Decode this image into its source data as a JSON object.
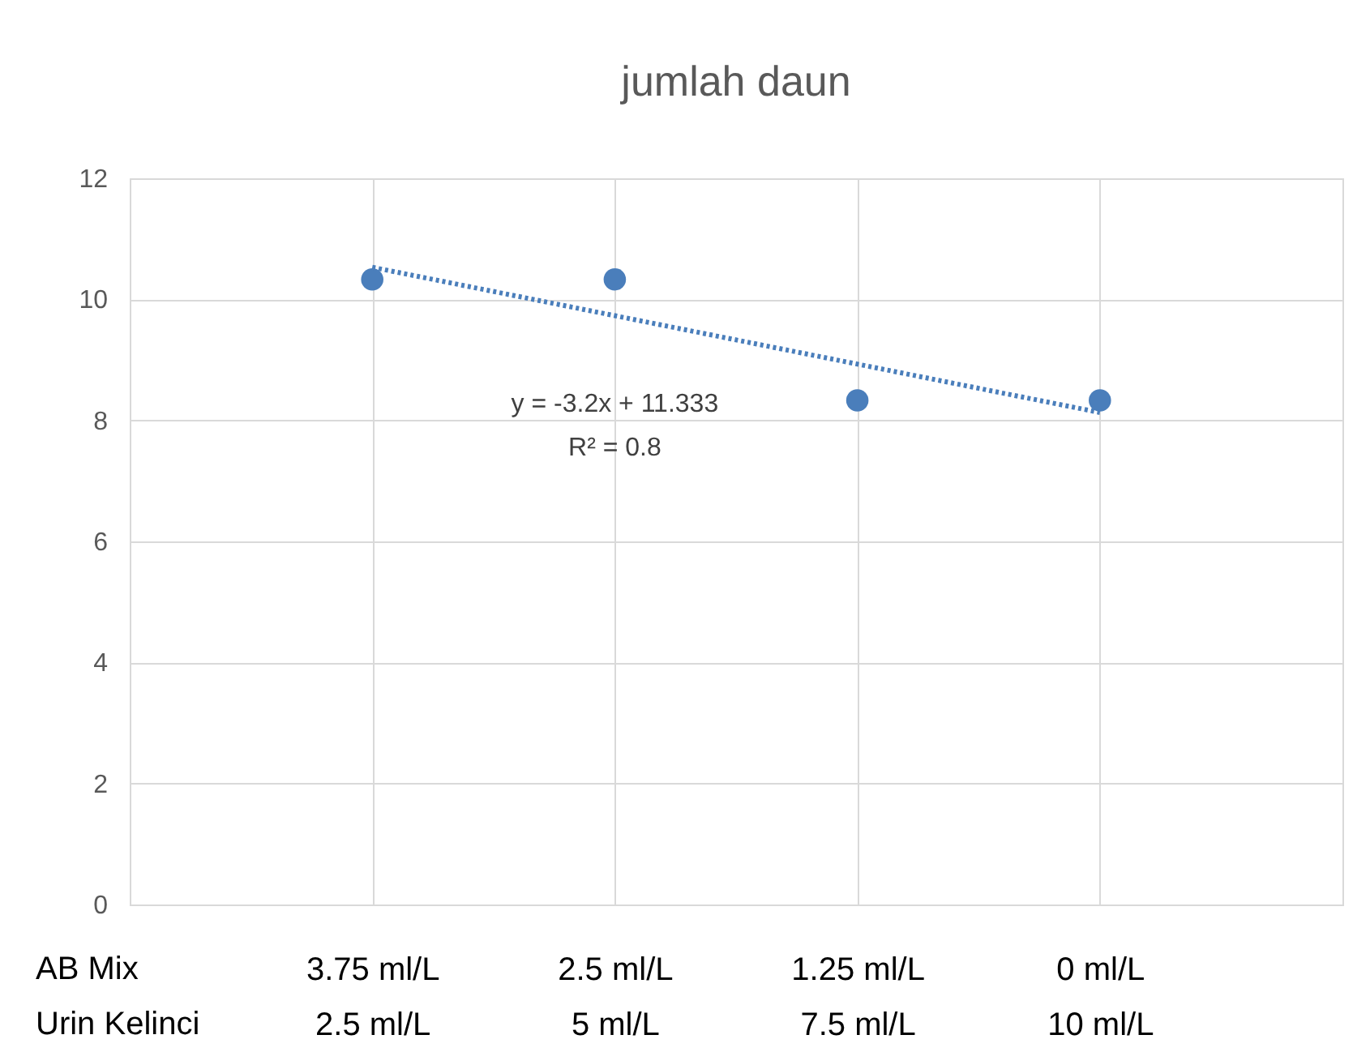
{
  "chart_data": {
    "type": "scatter",
    "title": "jumlah daun",
    "categories": [
      "3.75 ml/L\n2.5 ml/L",
      "2.5 ml/L\n5 ml/L",
      "1.25 ml/L\n7.5 ml/L",
      "0 ml/L\n10 ml/L"
    ],
    "series": [
      {
        "type": "scatter",
        "color": "#4a7ebb",
        "marker": "circle",
        "values": [
          10.33,
          10.33,
          8.33,
          8.33
        ]
      },
      {
        "type": "line",
        "color": "#4a7ebb",
        "line_style": "dotted",
        "x": [
          "3.75 ml/L\n2.5 ml/L",
          "0 ml/L\n10 ml/L"
        ],
        "values": [
          10.53,
          8.13
        ]
      }
    ],
    "ylim": [
      0,
      12
    ],
    "yticks": [
      0,
      2,
      4,
      6,
      8,
      10,
      12
    ],
    "grid": true,
    "annotations": [
      "AB Mix",
      "Urin Kelinci",
      "y = -3.2x + 11.333",
      "R² = 0.8"
    ]
  }
}
